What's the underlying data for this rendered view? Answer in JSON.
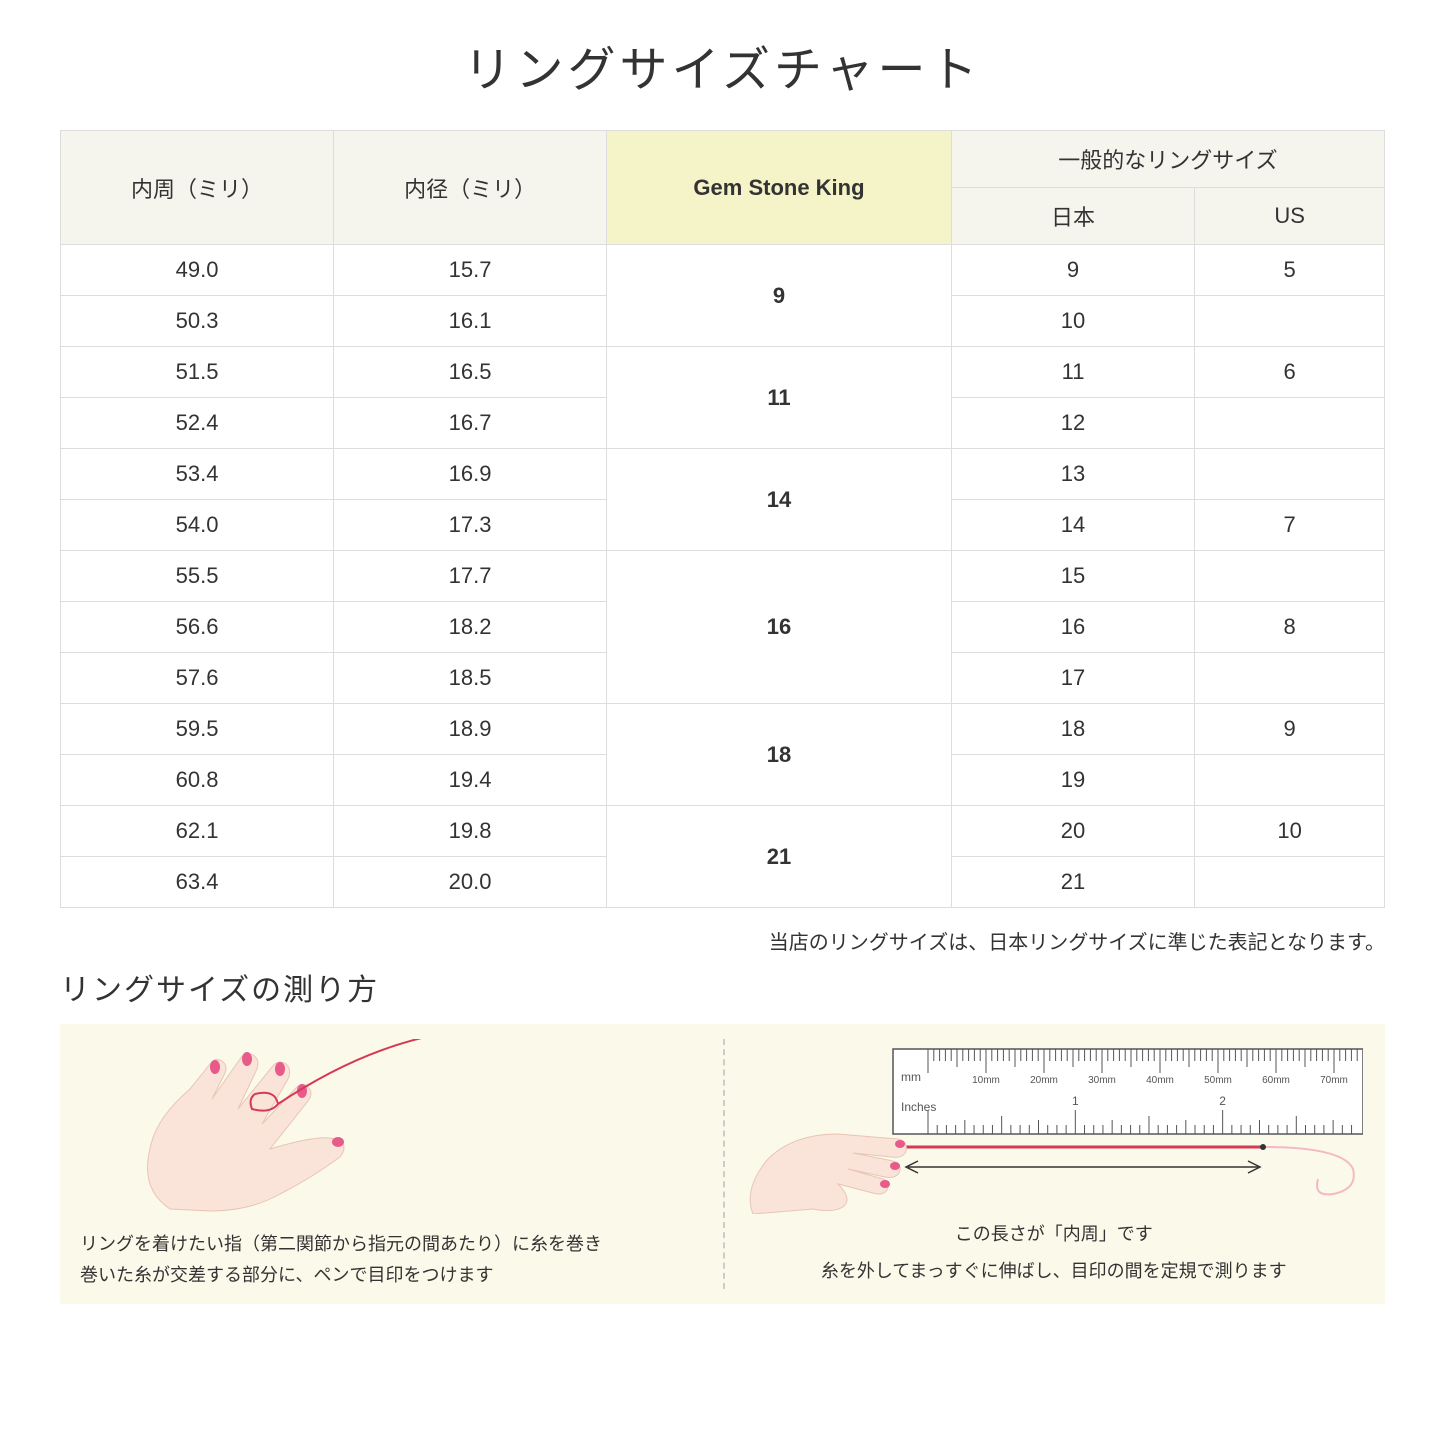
{
  "title": "リングサイズチャート",
  "table": {
    "headers": {
      "circumference": "内周（ミリ）",
      "diameter": "内径（ミリ）",
      "gsk": "Gem Stone King",
      "general": "一般的なリングサイズ",
      "japan": "日本",
      "us": "US"
    },
    "groups": [
      {
        "gsk": "9",
        "rows": [
          {
            "circ": "49.0",
            "diam": "15.7",
            "jp": "9",
            "us": "5"
          },
          {
            "circ": "50.3",
            "diam": "16.1",
            "jp": "10",
            "us": ""
          }
        ]
      },
      {
        "gsk": "11",
        "rows": [
          {
            "circ": "51.5",
            "diam": "16.5",
            "jp": "11",
            "us": "6"
          },
          {
            "circ": "52.4",
            "diam": "16.7",
            "jp": "12",
            "us": ""
          }
        ]
      },
      {
        "gsk": "14",
        "rows": [
          {
            "circ": "53.4",
            "diam": "16.9",
            "jp": "13",
            "us": ""
          },
          {
            "circ": "54.0",
            "diam": "17.3",
            "jp": "14",
            "us": "7"
          }
        ]
      },
      {
        "gsk": "16",
        "rows": [
          {
            "circ": "55.5",
            "diam": "17.7",
            "jp": "15",
            "us": ""
          },
          {
            "circ": "56.6",
            "diam": "18.2",
            "jp": "16",
            "us": "8"
          },
          {
            "circ": "57.6",
            "diam": "18.5",
            "jp": "17",
            "us": ""
          }
        ]
      },
      {
        "gsk": "18",
        "rows": [
          {
            "circ": "59.5",
            "diam": "18.9",
            "jp": "18",
            "us": "9"
          },
          {
            "circ": "60.8",
            "diam": "19.4",
            "jp": "19",
            "us": ""
          }
        ]
      },
      {
        "gsk": "21",
        "rows": [
          {
            "circ": "62.1",
            "diam": "19.8",
            "jp": "20",
            "us": "10"
          },
          {
            "circ": "63.4",
            "diam": "20.0",
            "jp": "21",
            "us": ""
          }
        ]
      }
    ]
  },
  "note": "当店のリングサイズは、日本リングサイズに準じた表記となります。",
  "subtitle": "リングサイズの測り方",
  "guide": {
    "left_caption_line1": "リングを着けたい指（第二関節から指元の間あたり）に糸を巻き",
    "left_caption_line2": "巻いた糸が交差する部分に、ペンで目印をつけます",
    "right_ruler_label": "この長さが「内周」です",
    "right_caption": "糸を外してまっすぐに伸ばし、目印の間を定規で測ります",
    "ruler_mm": "mm",
    "ruler_inches": "Inches",
    "ruler_mm_labels": [
      "10mm",
      "20mm",
      "30mm",
      "40mm",
      "50mm",
      "60mm",
      "70mm"
    ],
    "ruler_inch_labels": [
      "1",
      "2"
    ]
  },
  "colors": {
    "header_bg": "#f5f5ee",
    "highlight_bg": "#f5f3c8",
    "guide_bg": "#fbf9ea",
    "hand_fill": "#fae3d9",
    "nail_fill": "#e85a8a",
    "thread": "#d63856",
    "border": "#dddddd"
  }
}
